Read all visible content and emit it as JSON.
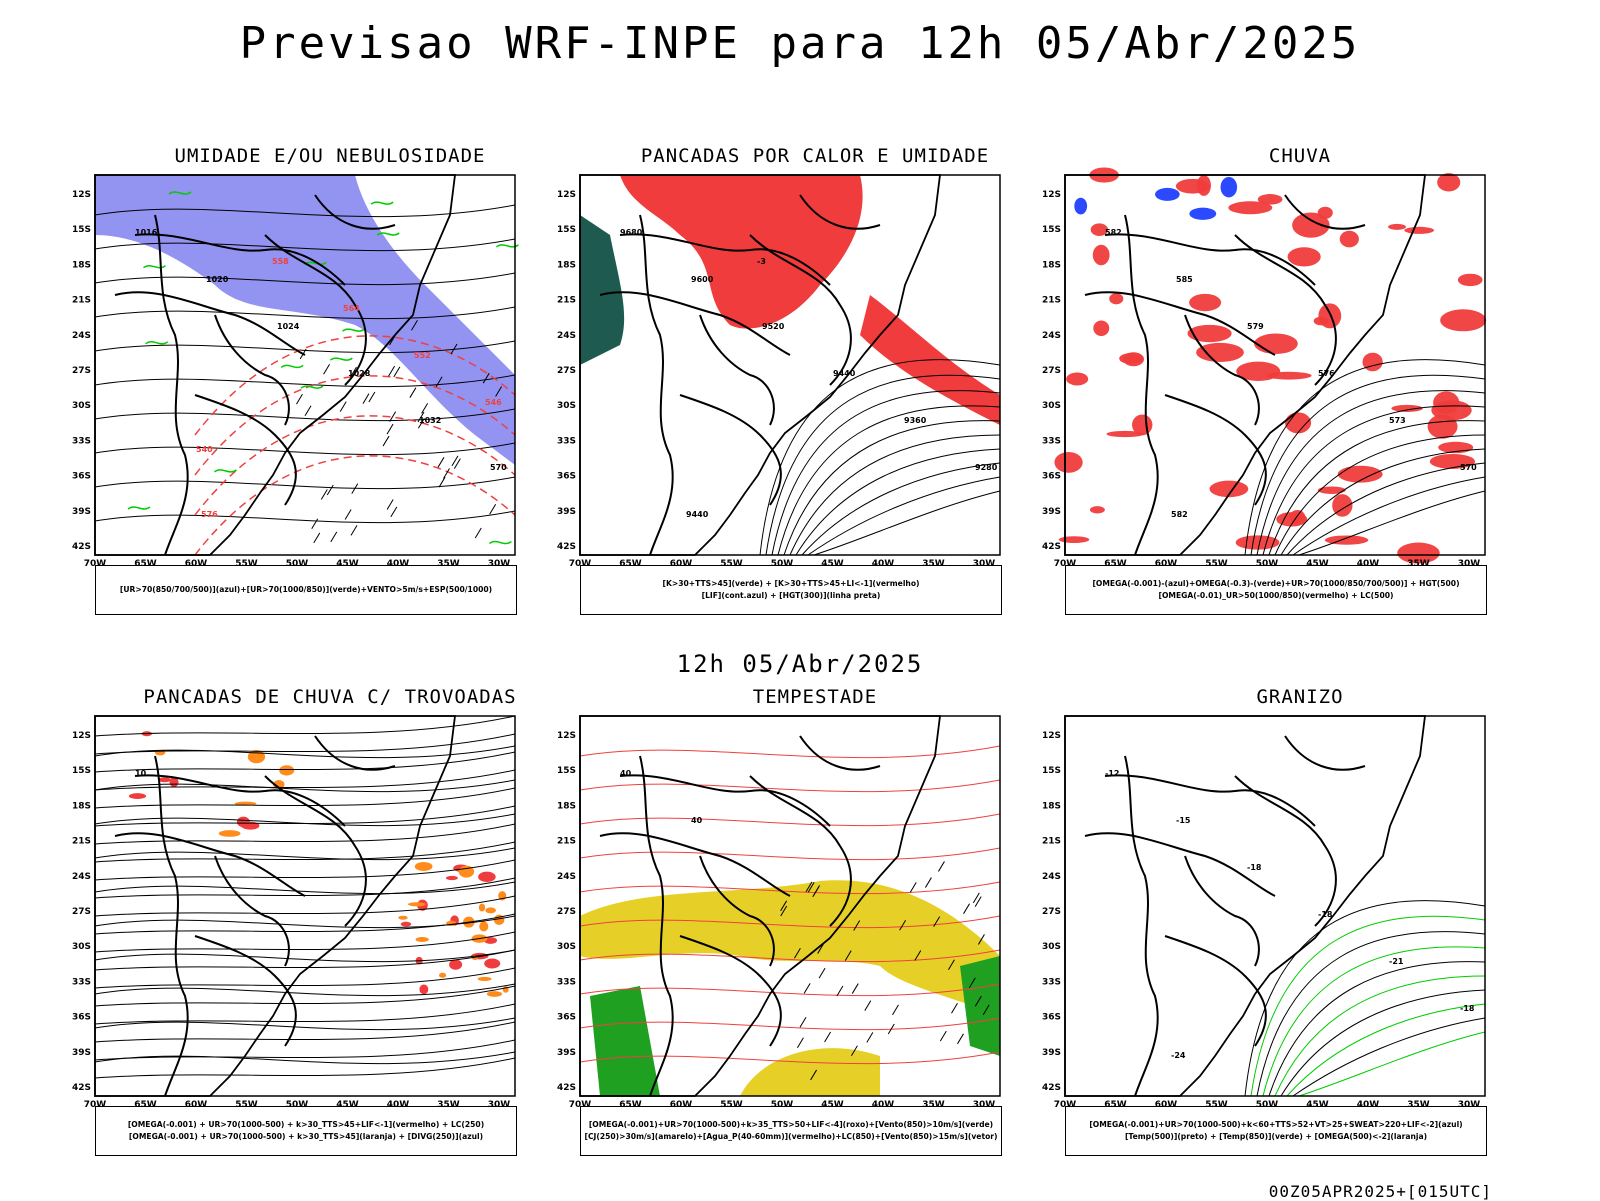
{
  "title": "Previsao WRF-INPE  para 12h 05/Abr/2025",
  "mid_title": "12h 05/Abr/2025",
  "footer": "00Z05APR2025+[015UTC]",
  "colors": {
    "blue": "#8080f0",
    "green": "#00cc00",
    "red": "#f03c3c",
    "teal": "#1e5a50",
    "yellow": "#e6d028",
    "orange": "#ff8c1a"
  },
  "lat_labels": [
    "12S",
    "15S",
    "18S",
    "21S",
    "24S",
    "27S",
    "30S",
    "33S",
    "36S",
    "39S",
    "42S"
  ],
  "lon_labels": [
    "70W",
    "65W",
    "60W",
    "55W",
    "50W",
    "45W",
    "40W",
    "35W",
    "30W"
  ],
  "panels": [
    {
      "title": "UMIDADE E/OU NEBULOSIDADE",
      "legend": [
        "[UR>70(850/700/500)](azul)+[UR>70(1000/850)](verde)+VENTO>5m/s+ESP(500/1000)"
      ],
      "contour_labels": [
        "1016",
        "1020",
        "1024",
        "1028",
        "1032",
        "570",
        "576",
        "558",
        "564",
        "552",
        "546",
        "540"
      ]
    },
    {
      "title": "PANCADAS POR CALOR E UMIDADE",
      "legend": [
        "[K>30+TTS>45](verde) + [K>30+TTS>45+LI<-1](vermelho)",
        "[LIF](cont.azul) + [HGT(300)](linha preta)"
      ],
      "contour_labels": [
        "9680",
        "9600",
        "9520",
        "9440",
        "9360",
        "9280",
        "9440",
        "-3"
      ]
    },
    {
      "title": "CHUVA",
      "legend": [
        "[OMEGA(-0.001)-(azul)+OMEGA(-0.3)-(verde)+UR>70(1000/850/700/500)] + HGT(500)",
        "[OMEGA(-0.01)_UR>50(1000/850)(vermelho) + LC(500)"
      ],
      "contour_labels": [
        "582",
        "585",
        "579",
        "576",
        "573",
        "570",
        "582"
      ]
    },
    {
      "title": "PANCADAS DE CHUVA C/ TROVOADAS",
      "legend": [
        "[OMEGA(-0.001) + UR>70(1000-500) + k>30_TTS>45+LIF<-1](vermelho) + LC(250)",
        "[OMEGA(-0.001) + UR>70(1000-500) + k>30_TTS>45](laranja) + [DIVG(250)](azul)"
      ],
      "contour_labels": [
        "10"
      ]
    },
    {
      "title": "TEMPESTADE",
      "legend": [
        "[OMEGA(-0.001)+UR>70(1000-500)+k>35_TTS>50+LIF<-4](roxo)+[Vento(850)>10m/s](verde)",
        "[CJ(250)>30m/s](amarelo)+[Agua_P(40-60mm)](vermelho)+LC(850)+[Vento(850)>15m/s](vetor)"
      ],
      "contour_labels": [
        "40",
        "40"
      ]
    },
    {
      "title": "GRANIZO",
      "legend": [
        "[OMEGA(-0.001)+UR>70(1000-500)+k<60+TTS>52+VT>25+SWEAT>220+LIF<-2](azul)",
        "[Temp(500)](preto) + [Temp(850)](verde) + [OMEGA(500)<-2](laranja)"
      ],
      "contour_labels": [
        "-12",
        "-15",
        "-18",
        "-18",
        "-21",
        "-18",
        "-24"
      ]
    }
  ]
}
